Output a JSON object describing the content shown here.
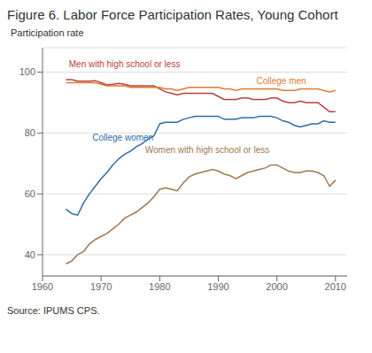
{
  "chart_data": {
    "type": "line",
    "title": "Figure 6. Labor Force Participation Rates, Young Cohort",
    "ylabel": "Participation rate",
    "source": "Source: IPUMS CPS.",
    "xlim": [
      1960,
      2012
    ],
    "ylim": [
      33,
      108
    ],
    "xticks": [
      1960,
      1970,
      1980,
      1990,
      2000,
      2010
    ],
    "yticks": [
      40,
      60,
      80,
      100
    ],
    "grid": "y",
    "x": [
      1964,
      1965,
      1966,
      1967,
      1968,
      1969,
      1970,
      1971,
      1972,
      1973,
      1974,
      1975,
      1976,
      1977,
      1978,
      1979,
      1980,
      1981,
      1982,
      1983,
      1984,
      1985,
      1986,
      1987,
      1988,
      1989,
      1990,
      1991,
      1992,
      1993,
      1994,
      1995,
      1996,
      1997,
      1998,
      1999,
      2000,
      2001,
      2002,
      2003,
      2004,
      2005,
      2006,
      2007,
      2008,
      2009,
      2010
    ],
    "series": [
      {
        "name": "Men with high school or less",
        "color": "#b94040",
        "values": [
          97.5,
          97.5,
          97.0,
          97.0,
          97.0,
          97.2,
          96.5,
          95.8,
          96.0,
          96.3,
          96.0,
          95.5,
          95.5,
          95.5,
          95.5,
          95.5,
          94.5,
          93.5,
          93.0,
          92.5,
          93.0,
          93.0,
          93.0,
          93.0,
          93.0,
          93.0,
          92.0,
          91.0,
          91.0,
          91.0,
          91.5,
          91.5,
          91.0,
          91.0,
          91.0,
          91.5,
          91.5,
          90.5,
          90.0,
          90.0,
          90.5,
          90.0,
          90.0,
          90.0,
          88.5,
          87.0,
          87.0
        ]
      },
      {
        "name": "College men",
        "color": "#e07b2a",
        "values": [
          96.5,
          96.5,
          96.5,
          96.5,
          96.5,
          96.5,
          96.0,
          95.5,
          95.5,
          95.5,
          95.5,
          95.0,
          95.0,
          95.0,
          95.0,
          95.0,
          95.0,
          94.5,
          94.5,
          94.0,
          94.5,
          95.0,
          95.0,
          95.0,
          95.0,
          95.0,
          95.0,
          94.5,
          94.5,
          94.0,
          94.5,
          94.5,
          94.5,
          94.5,
          94.5,
          94.5,
          94.5,
          94.0,
          94.0,
          94.0,
          94.5,
          94.5,
          94.5,
          94.5,
          94.0,
          93.5,
          94.0
        ]
      },
      {
        "name": "College women",
        "color": "#2e6da4",
        "values": [
          55.0,
          53.5,
          53.0,
          57.0,
          60.0,
          62.5,
          65.0,
          67.0,
          69.5,
          71.5,
          73.0,
          74.0,
          75.5,
          76.5,
          78.0,
          79.0,
          83.0,
          83.5,
          83.5,
          83.5,
          84.5,
          85.0,
          85.5,
          85.5,
          85.5,
          85.5,
          85.5,
          84.5,
          84.5,
          84.5,
          85.0,
          85.0,
          85.0,
          85.5,
          85.5,
          85.5,
          85.0,
          84.0,
          83.5,
          82.5,
          82.0,
          82.5,
          83.0,
          83.0,
          84.0,
          83.5,
          83.5
        ]
      },
      {
        "name": "Women with high school or less",
        "color": "#a07850",
        "values": [
          37.0,
          38.0,
          40.0,
          41.0,
          43.5,
          45.0,
          46.0,
          47.0,
          48.5,
          50.0,
          52.0,
          53.0,
          54.0,
          55.5,
          57.0,
          59.0,
          61.5,
          62.0,
          61.5,
          61.0,
          63.5,
          65.5,
          66.5,
          67.0,
          67.5,
          68.0,
          67.5,
          66.5,
          66.0,
          65.0,
          66.0,
          67.0,
          67.5,
          68.0,
          68.5,
          69.5,
          69.5,
          68.5,
          67.5,
          67.0,
          67.0,
          67.5,
          67.5,
          67.0,
          66.0,
          62.5,
          64.5
        ]
      }
    ],
    "annotations": [
      {
        "text": "Men with high school or less",
        "x": 1964.5,
        "y": 102.5,
        "color": "#b94040"
      },
      {
        "text": "College men",
        "x": 1996.5,
        "y": 97.2,
        "color": "#e07b2a"
      },
      {
        "text": "College women",
        "x": 1968.5,
        "y": 78.5,
        "color": "#2e6da4"
      },
      {
        "text": "Women with high school or less",
        "x": 1977.5,
        "y": 74.5,
        "color": "#a07850"
      }
    ]
  }
}
